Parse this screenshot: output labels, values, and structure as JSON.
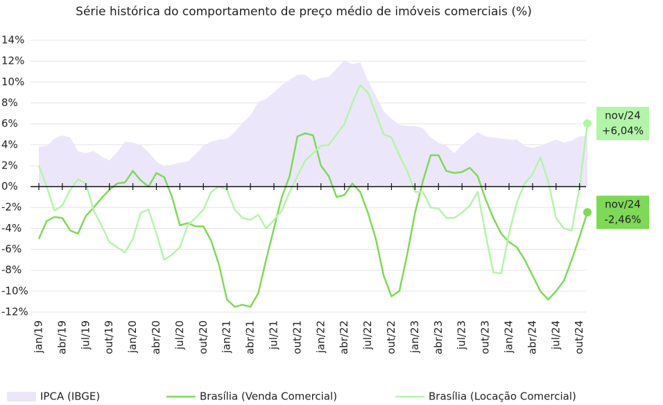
{
  "chart_data": {
    "type": "line",
    "title": "Série histórica do comportamento de preço médio de imóveis comerciais (%)",
    "categories": [
      "jan/19",
      null,
      null,
      "abr/19",
      null,
      null,
      "jul/19",
      null,
      null,
      "out/19",
      null,
      null,
      "jan/20",
      null,
      null,
      "abr/20",
      null,
      null,
      "jul/20",
      null,
      null,
      "out/20",
      null,
      null,
      "jan/21",
      null,
      null,
      "abr/21",
      null,
      null,
      "jul/21",
      null,
      null,
      "out/21",
      null,
      null,
      "jan/22",
      null,
      null,
      "abr/22",
      null,
      null,
      "jul/22",
      null,
      null,
      "out/22",
      null,
      null,
      "jan/23",
      null,
      null,
      "abr/23",
      null,
      null,
      "jul/23",
      null,
      null,
      "out/23",
      null,
      null,
      "jan/24",
      null,
      null,
      "abr/24",
      null,
      null,
      "jul/24",
      null,
      null,
      "out/24",
      null
    ],
    "ylim": [
      -12,
      14
    ],
    "yticks": [
      {
        "value": -12,
        "label": "-12%"
      },
      {
        "value": -10,
        "label": "-10%"
      },
      {
        "value": -8,
        "label": "-8%"
      },
      {
        "value": -6,
        "label": "-6%"
      },
      {
        "value": -4,
        "label": "-4%"
      },
      {
        "value": -2,
        "label": "-2%"
      },
      {
        "value": 0,
        "label": "0%"
      },
      {
        "value": 2,
        "label": "2%"
      },
      {
        "value": 4,
        "label": "4%"
      },
      {
        "value": 6,
        "label": "6%"
      },
      {
        "value": 8,
        "label": "8%"
      },
      {
        "value": 10,
        "label": "10%"
      },
      {
        "value": 12,
        "label": "12%"
      },
      {
        "value": 14,
        "label": "14%"
      }
    ],
    "grid": true,
    "series": [
      {
        "name": "IPCA (IBGE)",
        "kind": "area",
        "color": "#ece6fa",
        "values": [
          3.8,
          3.9,
          4.6,
          4.9,
          4.7,
          3.4,
          3.2,
          3.4,
          2.9,
          2.5,
          3.3,
          4.3,
          4.2,
          4.0,
          3.3,
          2.4,
          1.9,
          2.1,
          2.3,
          2.4,
          3.1,
          3.9,
          4.3,
          4.5,
          4.6,
          5.2,
          6.1,
          6.8,
          8.1,
          8.4,
          9.0,
          9.7,
          10.2,
          10.7,
          10.7,
          10.1,
          10.4,
          10.5,
          11.3,
          12.1,
          11.7,
          11.9,
          10.1,
          8.7,
          7.2,
          6.5,
          5.9,
          5.8,
          5.8,
          5.6,
          4.7,
          4.2,
          3.9,
          3.2,
          4.0,
          4.6,
          5.2,
          4.8,
          4.7,
          4.6,
          4.5,
          4.5,
          3.9,
          3.7,
          3.9,
          4.2,
          4.5,
          4.2,
          4.4,
          4.8,
          4.9
        ]
      },
      {
        "name": "Brasília (Venda Comercial)",
        "kind": "line",
        "color": "#7ed957",
        "values": [
          -5.0,
          -3.3,
          -2.9,
          -3.0,
          -4.2,
          -4.5,
          -2.8,
          -2.0,
          -1.1,
          -0.3,
          0.3,
          0.4,
          1.5,
          0.6,
          0.0,
          1.3,
          0.9,
          -1.0,
          -3.7,
          -3.5,
          -3.8,
          -3.8,
          -5.2,
          -7.5,
          -10.8,
          -11.5,
          -11.3,
          -11.5,
          -10.2,
          -7.0,
          -4.0,
          -1.0,
          1.0,
          4.8,
          5.1,
          4.9,
          2.0,
          1.0,
          -1.0,
          -0.8,
          0.3,
          -0.5,
          -2.5,
          -5.0,
          -8.5,
          -10.5,
          -10.0,
          -6.5,
          -2.5,
          0.5,
          3.0,
          3.0,
          1.5,
          1.3,
          1.4,
          1.8,
          1.0,
          -1.2,
          -3.0,
          -4.5,
          -5.3,
          -5.8,
          -7.0,
          -8.5,
          -10.0,
          -10.8,
          -10.0,
          -9.0,
          -7.0,
          -4.8,
          -2.46
        ],
        "last_label": [
          "nov/24",
          "-2,46%"
        ]
      },
      {
        "name": "Brasília (Locação Comercial)",
        "kind": "line",
        "color": "#b3f5a8",
        "values": [
          2.0,
          0.0,
          -2.3,
          -1.8,
          -0.3,
          0.7,
          0.3,
          -2.3,
          -3.7,
          -5.3,
          -5.8,
          -6.3,
          -5.0,
          -2.5,
          -2.2,
          -4.5,
          -7.0,
          -6.5,
          -5.8,
          -3.7,
          -3.0,
          -2.2,
          -0.5,
          0.0,
          -0.3,
          -2.2,
          -3.0,
          -3.2,
          -2.7,
          -4.0,
          -3.2,
          -2.3,
          -0.5,
          1.0,
          2.5,
          3.2,
          3.9,
          4.0,
          5.0,
          6.0,
          8.0,
          9.7,
          9.0,
          7.0,
          5.0,
          4.7,
          3.0,
          1.5,
          -0.5,
          -0.5,
          -2.0,
          -2.1,
          -3.0,
          -3.0,
          -2.5,
          -1.8,
          -0.5,
          -4.5,
          -8.2,
          -8.3,
          -4.5,
          -1.5,
          0.3,
          1.2,
          2.8,
          0.5,
          -3.0,
          -4.0,
          -4.2,
          0.0,
          6.04
        ],
        "last_label": [
          "nov/24",
          "+6,04%"
        ]
      }
    ]
  }
}
